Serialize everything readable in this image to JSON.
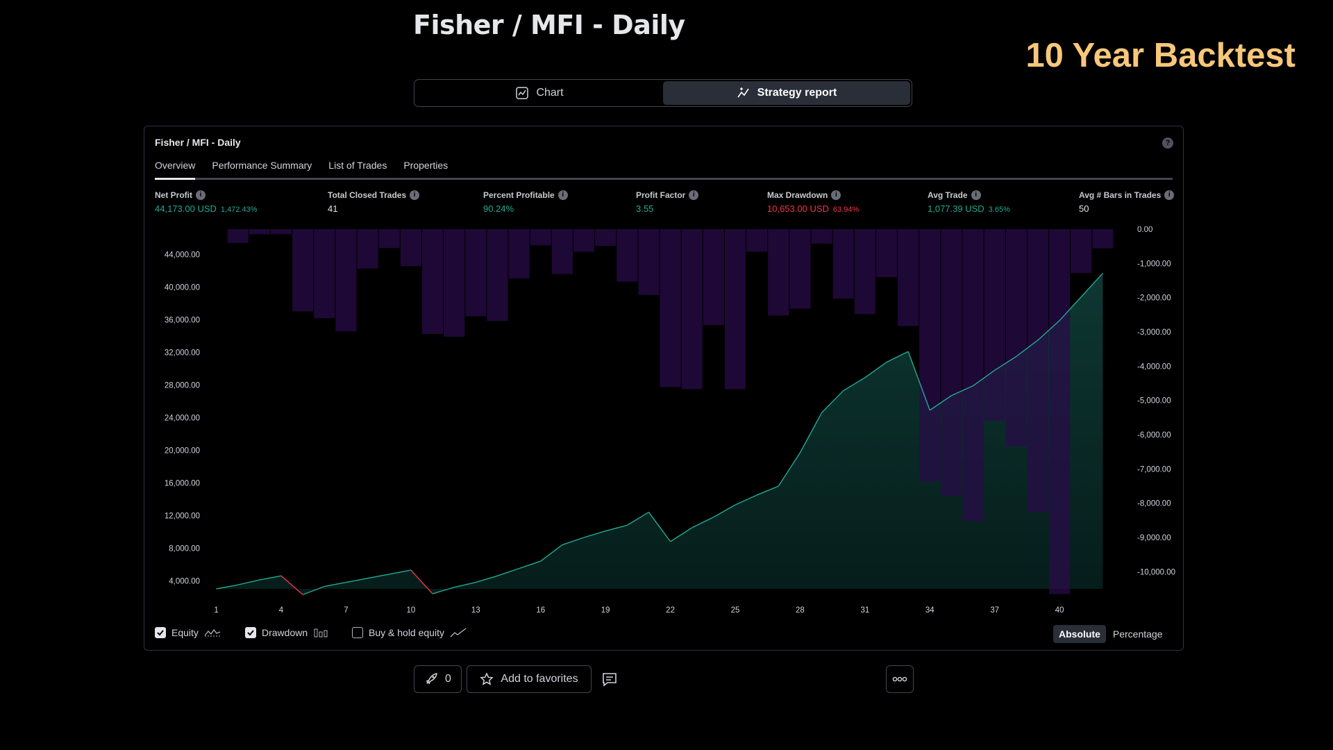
{
  "page": {
    "title": "Fisher / MFI - Daily",
    "banner": "10 Year Backtest"
  },
  "view_toggle": {
    "options": [
      {
        "label": "Chart",
        "icon": "chart-line-icon",
        "active": false
      },
      {
        "label": "Strategy report",
        "icon": "strategy-report-icon",
        "active": true
      }
    ]
  },
  "report": {
    "title": "Fisher / MFI - Daily",
    "tabs": [
      "Overview",
      "Performance Summary",
      "List of Trades",
      "Properties"
    ],
    "active_tab": "Overview",
    "stats": [
      {
        "label": "Net Profit",
        "value": "44,173.00 USD",
        "sub": "1,472.43%",
        "color": "green"
      },
      {
        "label": "Total Closed Trades",
        "value": "41",
        "sub": "",
        "color": "white"
      },
      {
        "label": "Percent Profitable",
        "value": "90.24%",
        "sub": "",
        "color": "green"
      },
      {
        "label": "Profit Factor",
        "value": "3.55",
        "sub": "",
        "color": "green"
      },
      {
        "label": "Max Drawdown",
        "value": "10,653.00 USD",
        "sub": "63.94%",
        "color": "red"
      },
      {
        "label": "Avg Trade",
        "value": "1,077.39 USD",
        "sub": "3.65%",
        "color": "green"
      },
      {
        "label": "Avg # Bars in Trades",
        "value": "50",
        "sub": "",
        "color": "white"
      }
    ],
    "legend": {
      "equity": {
        "label": "Equity",
        "checked": true
      },
      "drawdown": {
        "label": "Drawdown",
        "checked": true
      },
      "buy_hold": {
        "label": "Buy & hold equity",
        "checked": false
      }
    },
    "modes": [
      "Absolute",
      "Percentage"
    ],
    "active_mode": "Absolute"
  },
  "bottom_bar": {
    "boost_count": "0",
    "favorites_label": "Add to favorites"
  },
  "colors": {
    "equity_line": "#22ab94",
    "equity_negative": "#f23645",
    "drawdown_bar": "#2a0b4a",
    "banner": "#f7c77a"
  },
  "chart_data": {
    "type": "area",
    "x": [
      1,
      2,
      3,
      4,
      5,
      6,
      7,
      8,
      9,
      10,
      11,
      12,
      13,
      14,
      15,
      16,
      17,
      18,
      19,
      20,
      21,
      22,
      23,
      24,
      25,
      26,
      27,
      28,
      29,
      30,
      31,
      32,
      33,
      34,
      35,
      36,
      37,
      38,
      39,
      40,
      41,
      42
    ],
    "xticks": [
      "1",
      "4",
      "7",
      "10",
      "13",
      "16",
      "19",
      "22",
      "25",
      "28",
      "31",
      "34",
      "37",
      "40"
    ],
    "series": [
      {
        "axis": "left",
        "values": [
          3000,
          3500,
          4100,
          4600,
          2300,
          3300,
          3800,
          4300,
          4800,
          5300,
          2400,
          3200,
          3800,
          4600,
          5500,
          6400,
          8400,
          9300,
          10100,
          10800,
          12400,
          8800,
          10500,
          11800,
          13300,
          14500,
          15600,
          19700,
          24600,
          27300,
          28900,
          30800,
          32100,
          24900,
          26700,
          27900,
          29800,
          31500,
          33500,
          35900,
          38800,
          41700
        ]
      },
      {
        "axis": "right",
        "values": [
          0,
          -400,
          -150,
          -150,
          -2400,
          -2600,
          -2980,
          -1150,
          -550,
          -1080,
          -3060,
          -3140,
          -2540,
          -2680,
          -1440,
          -470,
          -1310,
          -660,
          -490,
          -1530,
          -1920,
          -4610,
          -4670,
          -2800,
          -4670,
          -660,
          -2520,
          -2320,
          -420,
          -2030,
          -2480,
          -1400,
          -2830,
          -7370,
          -7790,
          -8520,
          -5590,
          -6340,
          -8270,
          -10653,
          -1280,
          -560
        ]
      }
    ],
    "y_left_ticks": [
      "4,000.00",
      "8,000.00",
      "12,000.00",
      "16,000.00",
      "20,000.00",
      "24,000.00",
      "28,000.00",
      "32,000.00",
      "36,000.00",
      "40,000.00",
      "44,000.00"
    ],
    "y_right_ticks": [
      "0.00",
      "-1,000.00",
      "-2,000.00",
      "-3,000.00",
      "-4,000.00",
      "-5,000.00",
      "-6,000.00",
      "-7,000.00",
      "-8,000.00",
      "-9,000.00",
      "-10,000.00"
    ],
    "y_left_range": [
      3000,
      47100
    ],
    "y_right_range": [
      -10500,
      0
    ]
  }
}
